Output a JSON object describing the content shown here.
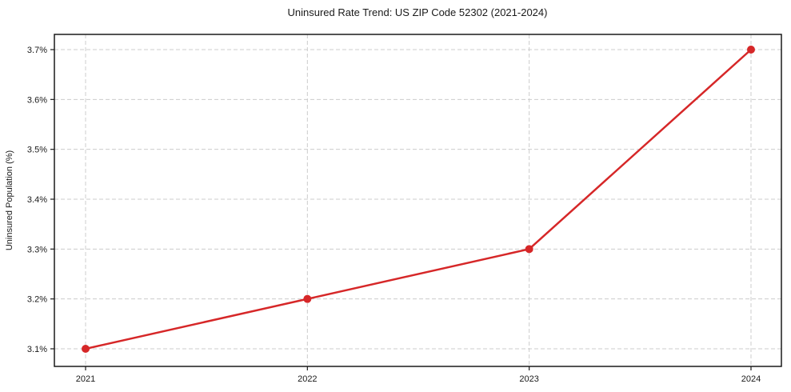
{
  "chart_data": {
    "type": "line",
    "title": "Uninsured Rate Trend: US ZIP Code 52302 (2021-2024)",
    "xlabel": "",
    "ylabel": "Uninsured Population (%)",
    "categories": [
      "2021",
      "2022",
      "2023",
      "2024"
    ],
    "series": [
      {
        "name": "Uninsured Rate",
        "values": [
          3.1,
          3.2,
          3.3,
          3.7
        ]
      }
    ],
    "y_ticks": [
      3.1,
      3.2,
      3.3,
      3.4,
      3.5,
      3.6,
      3.7
    ],
    "y_tick_labels": [
      "3.1%",
      "3.2%",
      "3.3%",
      "3.4%",
      "3.5%",
      "3.6%",
      "3.7%"
    ],
    "ylim": [
      3.065,
      3.73
    ],
    "grid": "both-dashed",
    "legend_position": "none",
    "colors": {
      "line": "#d62728",
      "marker": "#d62728",
      "grid": "#cccccc",
      "spine": "#1a1a1a",
      "tick": "#1a1a1a",
      "text": "#1a1a1a",
      "background": "#ffffff"
    }
  }
}
